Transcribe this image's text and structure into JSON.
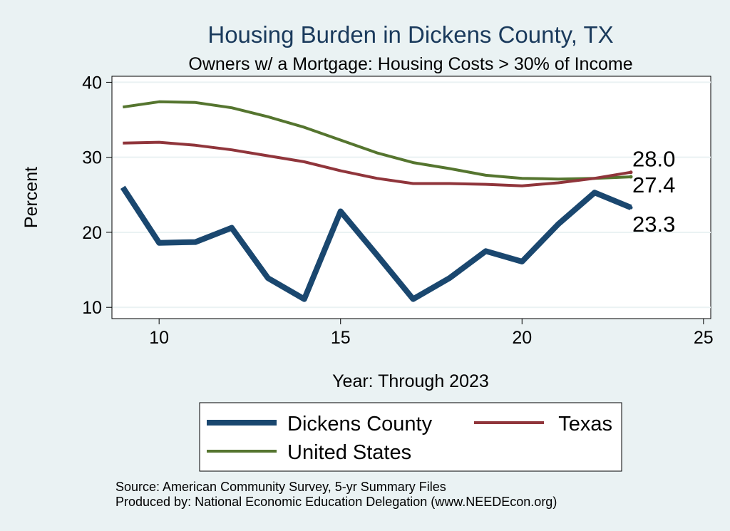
{
  "chart_data": {
    "type": "line",
    "title": "Housing Burden in Dickens County, TX",
    "subtitle": "Owners w/ a Mortgage: Housing Costs > 30% of Income",
    "xlabel": "Year: Through 2023",
    "ylabel": "Percent",
    "xlim": [
      8.7,
      25.2
    ],
    "ylim": [
      8.5,
      40.8
    ],
    "xticks": [
      10,
      15,
      20,
      25
    ],
    "yticks": [
      10,
      20,
      30,
      40
    ],
    "grid": true,
    "legend_position": "bottom",
    "x": [
      9,
      10,
      11,
      12,
      13,
      14,
      15,
      16,
      17,
      18,
      19,
      20,
      21,
      22,
      23
    ],
    "series": [
      {
        "name": "Dickens County",
        "color": "#1a476f",
        "width": 8,
        "values": [
          26.0,
          18.6,
          18.7,
          20.6,
          13.9,
          11.1,
          22.8,
          17.0,
          11.1,
          13.9,
          17.5,
          16.1,
          21.1,
          25.3,
          23.3
        ],
        "end_label": "23.3"
      },
      {
        "name": "Texas",
        "color": "#90353b",
        "width": 4,
        "values": [
          31.9,
          32.0,
          31.6,
          31.0,
          30.2,
          29.4,
          28.2,
          27.2,
          26.5,
          26.5,
          26.4,
          26.2,
          26.6,
          27.2,
          28.0
        ],
        "end_label": "28.0"
      },
      {
        "name": "United States",
        "color": "#55752f",
        "width": 4,
        "values": [
          36.7,
          37.4,
          37.3,
          36.6,
          35.4,
          34.0,
          32.3,
          30.6,
          29.3,
          28.5,
          27.6,
          27.2,
          27.1,
          27.2,
          27.4
        ],
        "end_label": "27.4"
      }
    ]
  },
  "source_line": "Source: American Community Survey, 5-yr Summary Files",
  "produced_line": "Produced by: National Economic Education Delegation (www.NEEDEcon.org)"
}
